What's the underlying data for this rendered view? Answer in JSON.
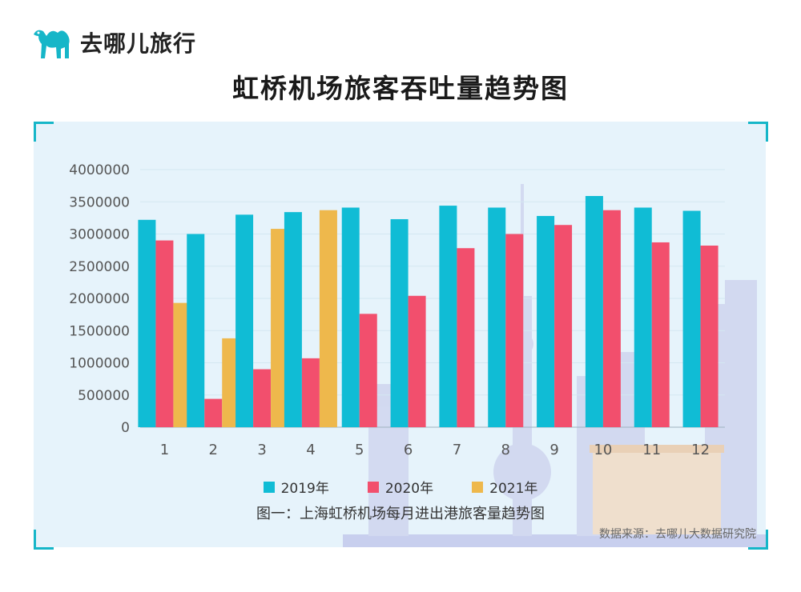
{
  "brand": {
    "name": "去哪儿旅行"
  },
  "title": "虹桥机场旅客吞吐量趋势图",
  "caption": "图一：上海虹桥机场每月进出港旅客量趋势图",
  "source": "数据来源：去哪儿大数据研究院",
  "colors": {
    "s2019": "#10bcd5",
    "s2020": "#f24f6d",
    "s2021": "#eeb84c",
    "accent": "#16b6c8",
    "panel": "#e6f3fb"
  },
  "chart_data": {
    "type": "bar",
    "title": "",
    "xlabel": "",
    "ylabel": "",
    "categories": [
      "1",
      "2",
      "3",
      "4",
      "5",
      "6",
      "7",
      "8",
      "9",
      "10",
      "11",
      "12"
    ],
    "yticks": [
      "0",
      "500000",
      "1000000",
      "1500000",
      "2000000",
      "2500000",
      "3000000",
      "3500000",
      "4000000"
    ],
    "ylim": [
      0,
      4000000
    ],
    "grid": true,
    "legend_position": "bottom",
    "series": [
      {
        "name": "2019年",
        "values": [
          3220000,
          3000000,
          3300000,
          3340000,
          3410000,
          3230000,
          3440000,
          3410000,
          3280000,
          3590000,
          3410000,
          3360000
        ]
      },
      {
        "name": "2020年",
        "values": [
          2900000,
          440000,
          900000,
          1070000,
          1760000,
          2040000,
          2780000,
          3000000,
          3140000,
          3370000,
          2870000,
          2820000
        ]
      },
      {
        "name": "2021年",
        "values": [
          1930000,
          1380000,
          3080000,
          3370000,
          null,
          null,
          null,
          null,
          null,
          null,
          null,
          null
        ]
      }
    ]
  }
}
